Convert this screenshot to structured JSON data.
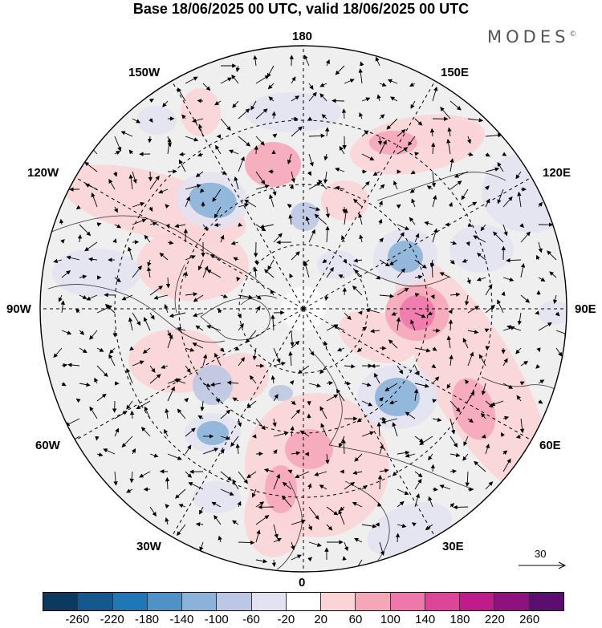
{
  "title": "Base 18/06/2025 00 UTC, valid 18/06/2025 00 UTC",
  "brand": "MODES",
  "brand_mark": "©",
  "map": {
    "projection": "north-polar-stereographic",
    "longitude_labels": {
      "top": "180",
      "bottom": "0",
      "left": "90W",
      "right": "90E",
      "upper_left_1": "150W",
      "upper_left_2": "120W",
      "lower_left_1": "60W",
      "lower_left_2": "30W",
      "upper_right_1": "150E",
      "upper_right_2": "120E",
      "lower_right_1": "60E",
      "lower_right_2": "30E"
    },
    "reference_vector_label": "30",
    "positive_color": "#e0418f",
    "negative_color": "#4a7fc1"
  },
  "colorbar": {
    "colors": [
      "#0c3a5e",
      "#14588e",
      "#1f77b4",
      "#4f93c6",
      "#8bb2d9",
      "#bcc8e3",
      "#e3e2f1",
      "#ffffff",
      "#fbd4d6",
      "#f5a7b9",
      "#ee78ab",
      "#dd4697",
      "#be1c8a",
      "#8e117f",
      "#5b0e6f"
    ],
    "ticks": [
      "-260",
      "-220",
      "-180",
      "-140",
      "-100",
      "-60",
      "-20",
      "20",
      "60",
      "100",
      "140",
      "180",
      "220",
      "260"
    ]
  }
}
